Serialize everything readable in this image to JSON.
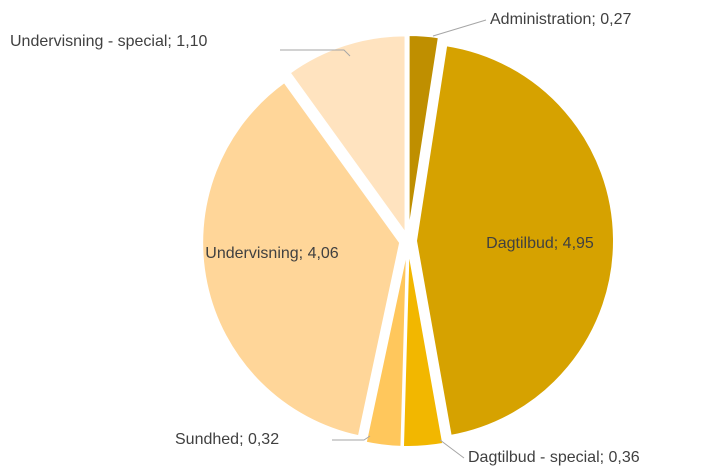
{
  "chart_data": {
    "type": "pie",
    "categories": [
      "Administration",
      "Dagtilbud",
      "Dagtilbud - special",
      "Sundhed",
      "Undervisning",
      "Undervisning - special"
    ],
    "values": [
      0.27,
      4.95,
      0.36,
      0.32,
      4.06,
      1.1
    ],
    "value_labels": [
      "0,27",
      "4,95",
      "0,36",
      "0,32",
      "4,06",
      "1,10"
    ],
    "label_separator": "; ",
    "colors": [
      "#bf8f00",
      "#d6a200",
      "#f2b700",
      "#ffc75c",
      "#ffd699",
      "#ffe3bf"
    ]
  }
}
